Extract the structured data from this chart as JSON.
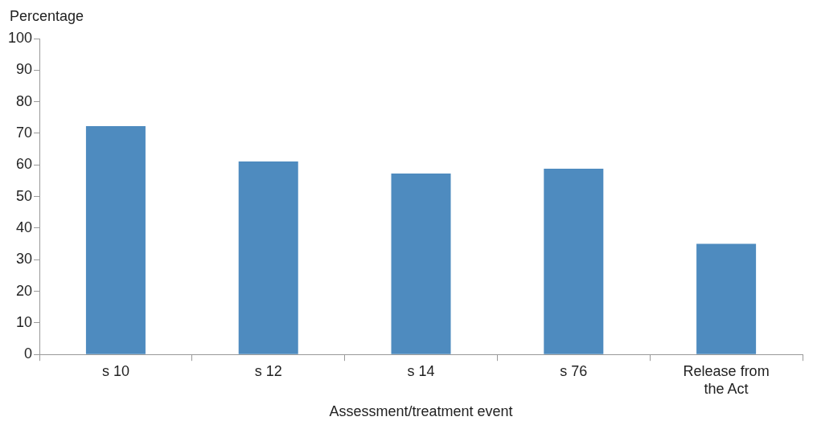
{
  "chart_data": {
    "type": "bar",
    "xlabel": "Assessment/treatment event",
    "ylabel": "Percentage",
    "categories": [
      "s 10",
      "s 12",
      "s 14",
      "s 76",
      "Release from the Act"
    ],
    "values": [
      72.3,
      61.1,
      57.3,
      58.8,
      35
    ],
    "color": "#4e8bbf",
    "ylim": [
      0,
      100
    ],
    "yticks": [
      0,
      10,
      20,
      30,
      40,
      50,
      60,
      70,
      80,
      90,
      100
    ],
    "grid": false,
    "legend": false
  }
}
